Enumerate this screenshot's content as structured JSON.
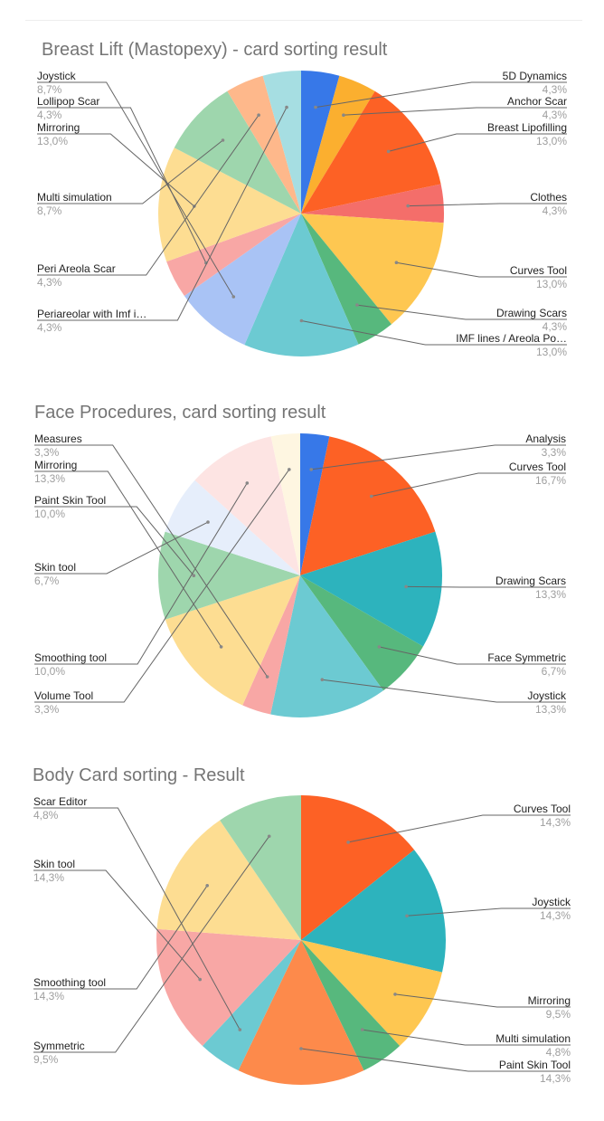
{
  "chart_data": [
    {
      "type": "pie",
      "title": "Breast Lift (Mastopexy) - card sorting result",
      "slices": [
        {
          "label": "5D Dynamics",
          "pct_label": "4,3%",
          "value": 4.3,
          "color": "#3778e8"
        },
        {
          "label": "Anchor Scar",
          "pct_label": "4,3%",
          "value": 4.3,
          "color": "#fbaf2f"
        },
        {
          "label": "Breast Lipofilling",
          "pct_label": "13,0%",
          "value": 13.0,
          "color": "#fd6125"
        },
        {
          "label": "Clothes",
          "pct_label": "4,3%",
          "value": 4.3,
          "color": "#f46e6a"
        },
        {
          "label": "Curves Tool",
          "pct_label": "13,0%",
          "value": 13.0,
          "color": "#fec751"
        },
        {
          "label": "Drawing Scars",
          "pct_label": "4,3%",
          "value": 4.3,
          "color": "#57b87d"
        },
        {
          "label": "IMF lines / Areola Po…",
          "pct_label": "13,0%",
          "value": 13.0,
          "color": "#6ccad2"
        },
        {
          "label": "Joystick",
          "pct_label": "8,7%",
          "value": 8.7,
          "color": "#a9c3f5"
        },
        {
          "label": "Lollipop Scar",
          "pct_label": "4,3%",
          "value": 4.3,
          "color": "#f8a7a5"
        },
        {
          "label": "Mirroring",
          "pct_label": "13,0%",
          "value": 13.0,
          "color": "#fddd92"
        },
        {
          "label": "Multi simulation",
          "pct_label": "8,7%",
          "value": 8.7,
          "color": "#9ed6ad"
        },
        {
          "label": "Peri Areola Scar",
          "pct_label": "4,3%",
          "value": 4.3,
          "color": "#feb88b"
        },
        {
          "label": "Periareolar with Imf i…",
          "pct_label": "4,3%",
          "value": 4.3,
          "color": "#a6dee2"
        }
      ]
    },
    {
      "type": "pie",
      "title": "Face Procedures, card sorting result",
      "slices": [
        {
          "label": "Analysis",
          "pct_label": "3,3%",
          "value": 3.3,
          "color": "#3778e8"
        },
        {
          "label": "Curves Tool",
          "pct_label": "16,7%",
          "value": 16.7,
          "color": "#fd6125"
        },
        {
          "label": "Drawing Scars",
          "pct_label": "13,3%",
          "value": 13.3,
          "color": "#2db3bd"
        },
        {
          "label": "Face Symmetric",
          "pct_label": "6,7%",
          "value": 6.7,
          "color": "#57b87d"
        },
        {
          "label": "Joystick",
          "pct_label": "13,3%",
          "value": 13.3,
          "color": "#6ccad2"
        },
        {
          "label": "Measures",
          "pct_label": "3,3%",
          "value": 3.3,
          "color": "#f8a7a5"
        },
        {
          "label": "Mirroring",
          "pct_label": "13,3%",
          "value": 13.3,
          "color": "#fddd92"
        },
        {
          "label": "Paint Skin Tool",
          "pct_label": "10,0%",
          "value": 10.0,
          "color": "#9ed6ad"
        },
        {
          "label": "Skin tool",
          "pct_label": "6,7%",
          "value": 6.7,
          "color": "#e6eefb"
        },
        {
          "label": "Smoothing tool",
          "pct_label": "10,0%",
          "value": 10.0,
          "color": "#fde4e3"
        },
        {
          "label": "Volume Tool",
          "pct_label": "3,3%",
          "value": 3.3,
          "color": "#fef6e1"
        }
      ]
    },
    {
      "type": "pie",
      "title": "Body Card sorting - Result",
      "slices": [
        {
          "label": "Curves Tool",
          "pct_label": "14,3%",
          "value": 14.3,
          "color": "#fd6125"
        },
        {
          "label": "Joystick",
          "pct_label": "14,3%",
          "value": 14.3,
          "color": "#2db3bd"
        },
        {
          "label": "Mirroring",
          "pct_label": "9,5%",
          "value": 9.5,
          "color": "#fec751"
        },
        {
          "label": "Multi simulation",
          "pct_label": "4,8%",
          "value": 4.8,
          "color": "#57b87d"
        },
        {
          "label": "Paint Skin Tool",
          "pct_label": "14,3%",
          "value": 14.3,
          "color": "#fd8a4b"
        },
        {
          "label": "Scar Editor",
          "pct_label": "4,8%",
          "value": 4.8,
          "color": "#6ccad2"
        },
        {
          "label": "Skin tool",
          "pct_label": "14,3%",
          "value": 14.3,
          "color": "#f8a7a5"
        },
        {
          "label": "Smoothing tool",
          "pct_label": "14,3%",
          "value": 14.3,
          "color": "#fddd92"
        },
        {
          "label": "Symmetric",
          "pct_label": "9,5%",
          "value": 9.5,
          "color": "#9ed6ad"
        }
      ]
    }
  ]
}
